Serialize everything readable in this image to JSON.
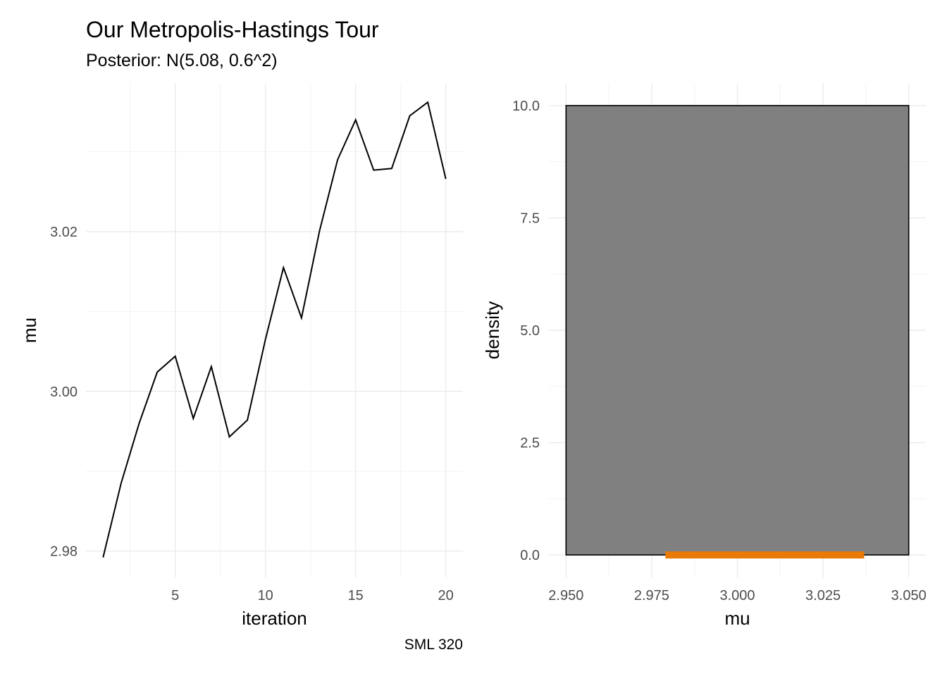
{
  "header": {
    "title": "Our Metropolis-Hastings Tour",
    "subtitle": "Posterior: N(5.08, 0.6^2)"
  },
  "caption": "SML 320",
  "colors": {
    "trace_line": "#000000",
    "histogram_fill": "#808080",
    "histogram_border": "#000000",
    "rug": "#E97A07",
    "grid_major": "#EBEBEB",
    "grid_minor": "#F3F3F3",
    "tick_label": "#4D4D4D"
  },
  "chart_data": [
    {
      "type": "line",
      "xlabel": "iteration",
      "ylabel": "mu",
      "x": [
        1,
        2,
        3,
        4,
        5,
        6,
        7,
        8,
        9,
        10,
        11,
        12,
        13,
        14,
        15,
        16,
        17,
        18,
        19,
        20
      ],
      "y": [
        2.9792,
        2.9885,
        2.996,
        3.0024,
        3.0044,
        2.9966,
        3.0031,
        2.9943,
        2.9964,
        3.0065,
        3.0155,
        3.0092,
        3.0201,
        3.029,
        3.034,
        3.0277,
        3.0279,
        3.0345,
        3.0362,
        3.0266
      ],
      "xlim": [
        0.05,
        20.95
      ],
      "ylim": [
        2.9767,
        3.0386
      ],
      "x_ticks": [
        5,
        10,
        15,
        20
      ],
      "x_tick_labels": [
        "5",
        "10",
        "15",
        "20"
      ],
      "y_ticks": [
        2.98,
        3.0,
        3.02
      ],
      "y_tick_labels": [
        "2.98",
        "3.00",
        "3.02"
      ],
      "grid": true
    },
    {
      "type": "bar",
      "subtype": "histogram",
      "xlabel": "mu",
      "ylabel": "density",
      "bins": [
        {
          "start": 2.95,
          "end": 3.05,
          "density": 10.0
        }
      ],
      "rug": {
        "from": 2.979,
        "to": 3.037
      },
      "xlim": [
        2.945,
        3.055
      ],
      "ylim": [
        -0.5,
        10.5
      ],
      "x_ticks": [
        2.95,
        2.975,
        3.0,
        3.025,
        3.05
      ],
      "x_tick_labels": [
        "2.950",
        "2.975",
        "3.000",
        "3.025",
        "3.050"
      ],
      "y_ticks": [
        0,
        2.5,
        5.0,
        7.5,
        10.0
      ],
      "y_tick_labels": [
        "0.0",
        "2.5",
        "5.0",
        "7.5",
        "10.0"
      ],
      "grid": true
    }
  ]
}
